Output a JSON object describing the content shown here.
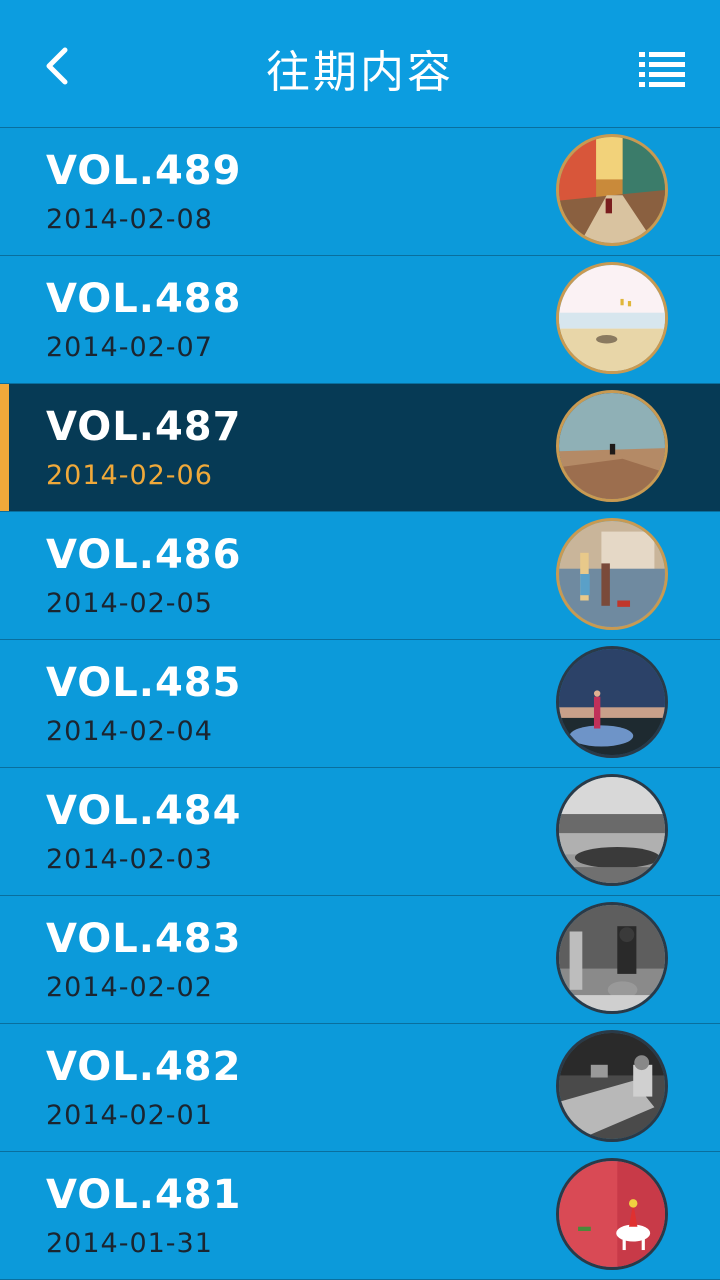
{
  "header": {
    "title": "往期内容",
    "back_icon": "chevron-left-icon",
    "menu_icon": "list-icon"
  },
  "colors": {
    "background": "#0c9ada",
    "active_row": "#063a55",
    "accent": "#f0a93a",
    "date_text": "#1b2530"
  },
  "issues": [
    {
      "vol": "VOL.489",
      "date": "2014-02-08"
    },
    {
      "vol": "VOL.488",
      "date": "2014-02-07"
    },
    {
      "vol": "VOL.487",
      "date": "2014-02-06",
      "selected": true
    },
    {
      "vol": "VOL.486",
      "date": "2014-02-05"
    },
    {
      "vol": "VOL.485",
      "date": "2014-02-04"
    },
    {
      "vol": "VOL.484",
      "date": "2014-02-03"
    },
    {
      "vol": "VOL.483",
      "date": "2014-02-02"
    },
    {
      "vol": "VOL.482",
      "date": "2014-02-01"
    },
    {
      "vol": "VOL.481",
      "date": "2014-01-31"
    }
  ]
}
